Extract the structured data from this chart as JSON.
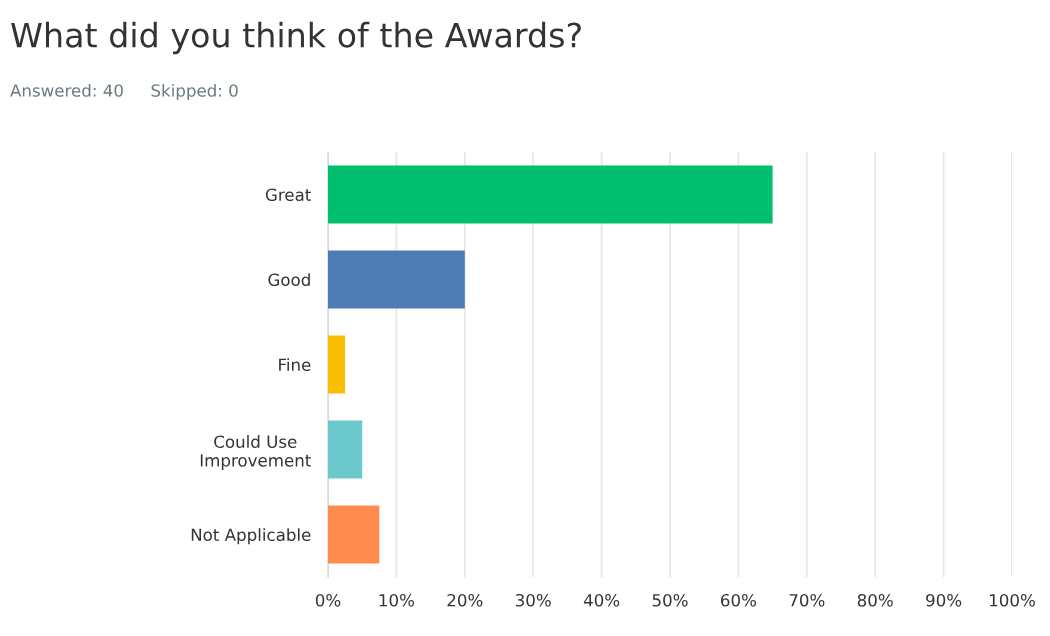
{
  "chart_data": {
    "type": "bar",
    "orientation": "horizontal",
    "title": "What did you think of the Awards?",
    "subtitle": "Answered: 40     Skipped: 0",
    "categories": [
      "Great",
      "Good",
      "Fine",
      "Could Use\nImprovement",
      "Not Applicable"
    ],
    "values": [
      65,
      20,
      2.5,
      5,
      7.5
    ],
    "colors": [
      "#00bf6f",
      "#507cb6",
      "#f9be00",
      "#6bc8cd",
      "#ff8b4f"
    ],
    "xlim": [
      0,
      100
    ],
    "xticks": [
      {
        "value": 0,
        "label": "0%"
      },
      {
        "value": 10,
        "label": "10%"
      },
      {
        "value": 20,
        "label": "20%"
      },
      {
        "value": 30,
        "label": "30%"
      },
      {
        "value": 40,
        "label": "40%"
      },
      {
        "value": 50,
        "label": "50%"
      },
      {
        "value": 60,
        "label": "60%"
      },
      {
        "value": 70,
        "label": "70%"
      },
      {
        "value": 80,
        "label": "80%"
      },
      {
        "value": 90,
        "label": "90%"
      },
      {
        "value": 100,
        "label": "100%"
      }
    ],
    "grid": "x"
  }
}
